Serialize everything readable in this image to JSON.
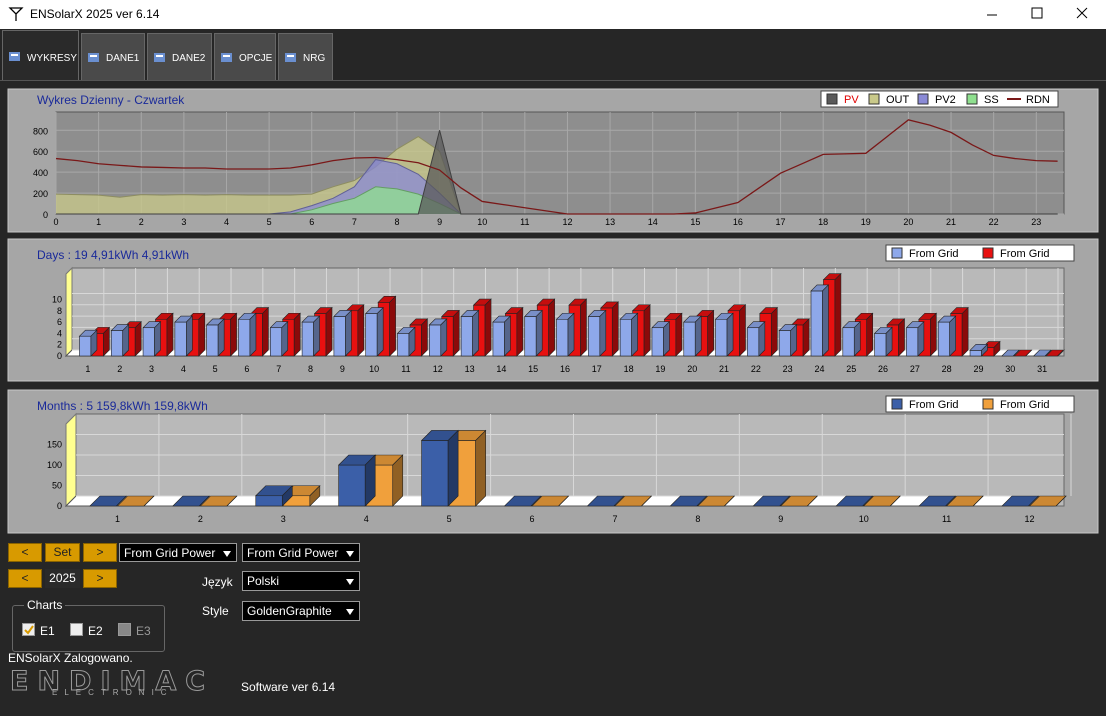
{
  "window": {
    "title": "ENSolarX 2025 ver 6.14"
  },
  "tabs": [
    "WYKRESY",
    "DANE1",
    "DANE2",
    "OPCJE",
    "NRG"
  ],
  "chart_data": [
    {
      "type": "area",
      "title": "Wykres Dzienny - Czwartek",
      "legend": "top-right",
      "grid": true,
      "x": [
        0,
        0.5,
        1,
        1.5,
        2,
        2.5,
        3,
        3.5,
        4,
        4.5,
        5,
        5.5,
        6,
        6.5,
        7,
        7.5,
        8,
        8.5,
        9,
        9.5,
        10,
        10.5,
        11,
        11.5,
        12,
        12.5,
        13,
        13.5,
        14,
        14.5,
        15,
        15.5,
        16,
        16.5,
        17,
        17.5,
        18,
        18.5,
        19,
        19.5,
        20,
        20.5,
        21,
        21.5,
        22,
        22.5,
        23,
        23.5
      ],
      "xlim": [
        0,
        23.65
      ],
      "xticks": [
        0,
        1,
        2,
        3,
        4,
        5,
        6,
        7,
        8,
        9,
        10,
        11,
        12,
        13,
        14,
        15,
        16,
        17,
        18,
        19,
        20,
        21,
        22,
        23
      ],
      "ylim": [
        0,
        975
      ],
      "yticks": [
        0,
        200,
        400,
        600,
        800
      ],
      "series": [
        {
          "name": "PV",
          "color": "#5a5a5a",
          "label_color": "#e00000",
          "values": [
            0,
            0,
            0,
            0,
            0,
            0,
            0,
            0,
            0,
            0,
            0,
            0,
            0,
            0,
            0,
            0,
            0,
            0,
            800,
            0,
            0,
            0,
            0,
            0,
            0,
            0,
            0,
            0,
            0,
            0,
            0,
            0,
            0,
            0,
            0,
            0,
            0,
            0,
            0,
            0,
            0,
            0,
            0,
            0,
            0,
            0,
            0,
            0
          ]
        },
        {
          "name": "OUT",
          "color": "#c9c98a",
          "values": [
            190,
            185,
            180,
            160,
            185,
            180,
            185,
            180,
            185,
            180,
            180,
            180,
            190,
            260,
            320,
            450,
            620,
            740,
            600,
            0,
            0,
            0,
            0,
            0,
            0,
            0,
            0,
            0,
            0,
            0,
            0,
            0,
            0,
            0,
            0,
            0,
            0,
            0,
            0,
            0,
            0,
            0,
            0,
            0,
            0,
            0,
            0,
            0
          ]
        },
        {
          "name": "PV2",
          "color": "#8a8ad6",
          "values": [
            0,
            0,
            0,
            0,
            0,
            0,
            0,
            0,
            0,
            0,
            0,
            20,
            80,
            150,
            260,
            520,
            480,
            380,
            200,
            0,
            0,
            0,
            0,
            0,
            0,
            0,
            0,
            0,
            0,
            0,
            0,
            0,
            0,
            0,
            0,
            0,
            0,
            0,
            0,
            0,
            0,
            0,
            0,
            0,
            0,
            0,
            0,
            0
          ]
        },
        {
          "name": "SS",
          "color": "#8fe08f",
          "values": [
            0,
            0,
            0,
            0,
            0,
            0,
            0,
            0,
            0,
            0,
            0,
            0,
            40,
            100,
            150,
            260,
            240,
            190,
            100,
            0,
            0,
            0,
            0,
            0,
            0,
            0,
            0,
            0,
            0,
            0,
            0,
            0,
            0,
            0,
            0,
            0,
            0,
            0,
            0,
            0,
            0,
            0,
            0,
            0,
            0,
            0,
            0,
            0
          ]
        },
        {
          "name": "RDN",
          "color": "#7a1818",
          "kind": "line",
          "values": [
            530,
            510,
            480,
            465,
            450,
            445,
            440,
            440,
            430,
            430,
            430,
            440,
            470,
            510,
            535,
            540,
            520,
            490,
            420,
            250,
            120,
            90,
            60,
            30,
            0,
            0,
            0,
            0,
            0,
            0,
            10,
            60,
            110,
            250,
            390,
            480,
            570,
            575,
            580,
            740,
            900,
            850,
            780,
            660,
            560,
            530,
            510,
            505
          ]
        }
      ]
    },
    {
      "type": "bar",
      "three_d": true,
      "title": "Days : 19   4,91kWh 4,91kWh",
      "legend": "top-right",
      "grid": true,
      "categories": [
        "1",
        "2",
        "3",
        "4",
        "5",
        "6",
        "7",
        "8",
        "9",
        "10",
        "11",
        "12",
        "13",
        "14",
        "15",
        "16",
        "17",
        "18",
        "19",
        "20",
        "21",
        "22",
        "23",
        "24",
        "25",
        "26",
        "27",
        "28",
        "29",
        "30",
        "31"
      ],
      "ylim": [
        0,
        14.5
      ],
      "yticks": [
        0,
        2,
        4,
        6,
        8,
        10
      ],
      "series": [
        {
          "name": "From Grid",
          "color": "#8ea8ea",
          "values": [
            3.5,
            4.5,
            5,
            6,
            5.5,
            6.5,
            5,
            6,
            7,
            7.5,
            4,
            5.5,
            7,
            6,
            7,
            6.5,
            7,
            6.5,
            5,
            6,
            6.5,
            5,
            4.5,
            11.5,
            5,
            4,
            5,
            6,
            1,
            0,
            0
          ]
        },
        {
          "name": "From Grid",
          "color": "#e81010",
          "values": [
            4,
            5,
            6.5,
            6.5,
            6.5,
            7.5,
            6.5,
            7.5,
            8,
            9.5,
            5.5,
            7,
            9,
            7.5,
            9,
            9,
            8.5,
            8,
            6.5,
            7,
            8,
            7.5,
            5.5,
            13.5,
            6.5,
            5.5,
            6.5,
            7.5,
            1.5,
            0,
            0
          ]
        }
      ]
    },
    {
      "type": "bar",
      "three_d": true,
      "title": "Months : 5   159,8kWh 159,8kWh",
      "legend": "top-right",
      "grid": true,
      "categories": [
        "1",
        "2",
        "3",
        "4",
        "5",
        "6",
        "7",
        "8",
        "9",
        "10",
        "11",
        "12"
      ],
      "ylim": [
        0,
        200
      ],
      "yticks": [
        0,
        50,
        100,
        150
      ],
      "series": [
        {
          "name": "From Grid",
          "color": "#3b5fa8",
          "values": [
            0,
            0,
            25,
            100,
            159.8,
            0,
            0,
            0,
            0,
            0,
            0,
            0
          ]
        },
        {
          "name": "From Grid",
          "color": "#f0a03c",
          "values": [
            0,
            0,
            25,
            100,
            159.8,
            0,
            0,
            0,
            0,
            0,
            0,
            0
          ]
        }
      ]
    }
  ],
  "controls": {
    "prev": "<",
    "set": "Set",
    "next": ">",
    "select_1": "From Grid Power",
    "select_2": "From Grid Power",
    "year_prev": "<",
    "year": "2025",
    "year_next": ">",
    "language_label": "Język",
    "language": "Polski",
    "style_label": "Style",
    "style": "GoldenGraphite"
  },
  "charts_group": {
    "title": "Charts",
    "items": [
      {
        "label": "E1",
        "checked": true,
        "enabled": true
      },
      {
        "label": "E2",
        "checked": false,
        "enabled": true
      },
      {
        "label": "E3",
        "checked": false,
        "enabled": false
      }
    ]
  },
  "status": "ENSolarX Zalogowano.",
  "logo": {
    "name": "ENDIMAC",
    "tagline": "ELECTRONIC"
  },
  "software": "Software ver 6.14"
}
